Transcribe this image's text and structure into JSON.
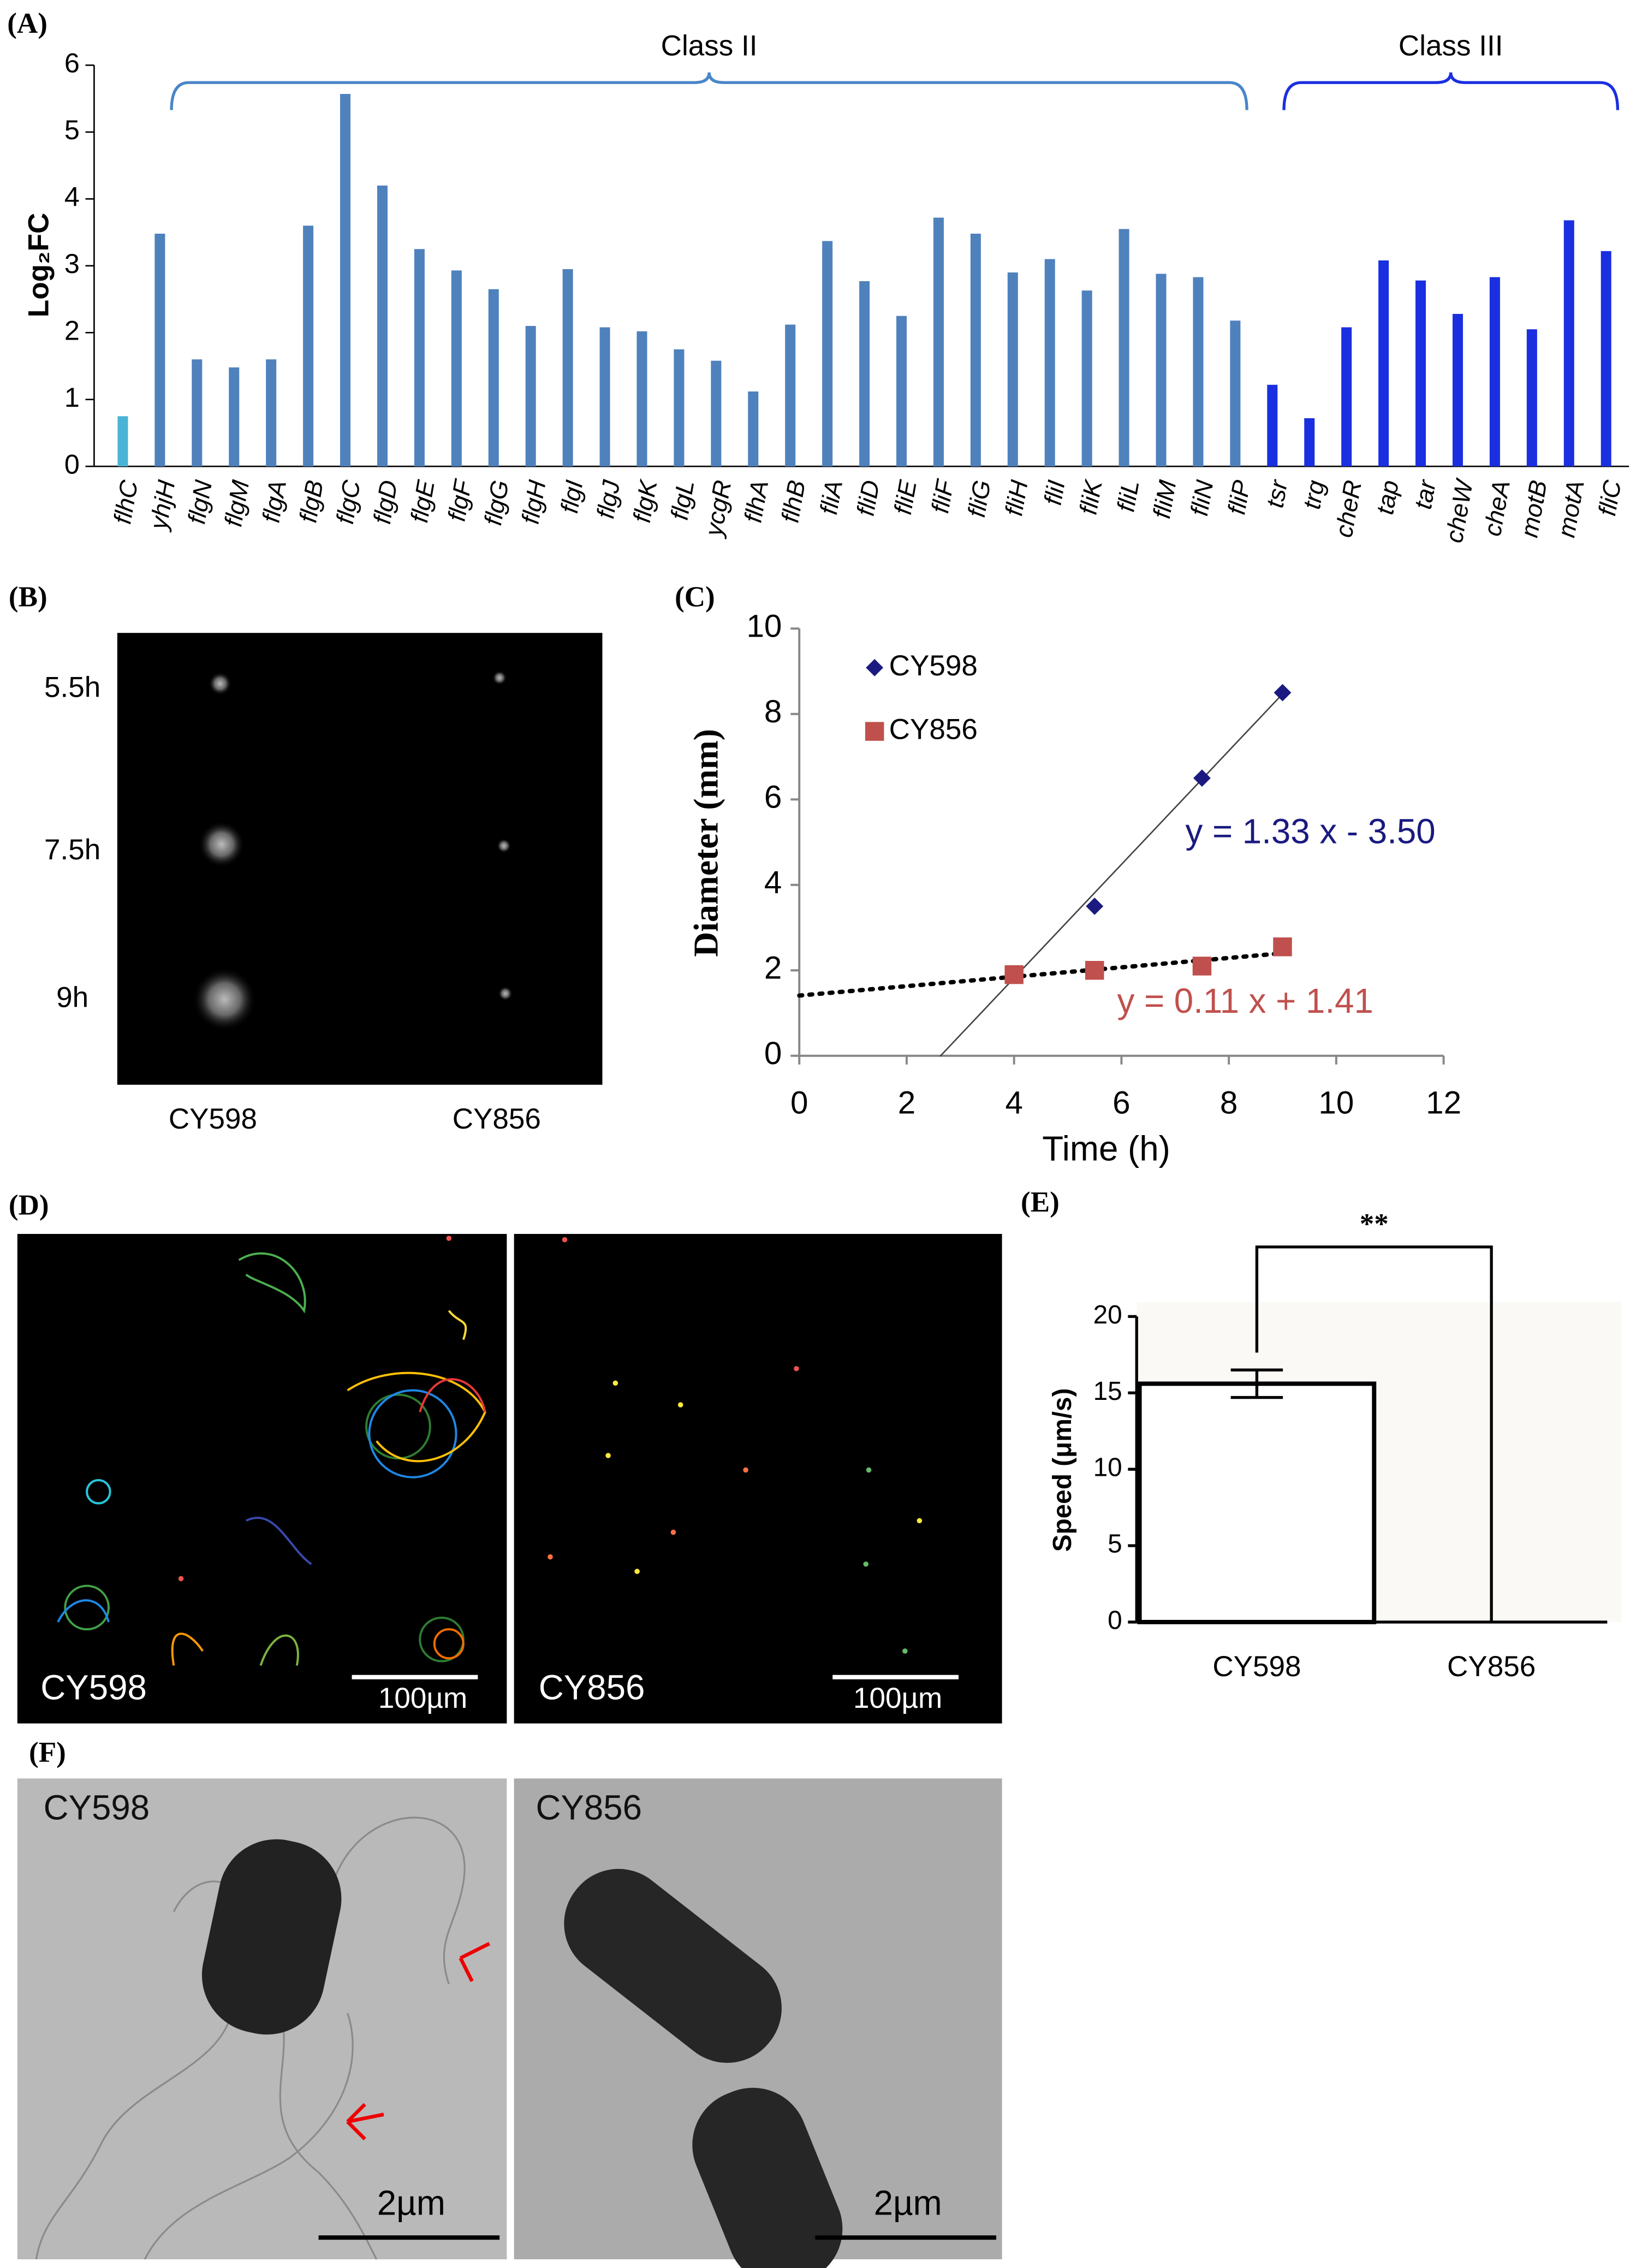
{
  "chart_data": [
    {
      "type": "bar",
      "label": "(A)",
      "ylabel": "Log₂FC",
      "categories": [
        "flhC",
        "yhjH",
        "flgN",
        "flgM",
        "flgA",
        "flgB",
        "flgC",
        "flgD",
        "flgE",
        "flgF",
        "flgG",
        "flgH",
        "flgI",
        "flgJ",
        "flgK",
        "flgL",
        "ycgR",
        "flhA",
        "flhB",
        "fliA",
        "fliD",
        "fliE",
        "fliF",
        "fliG",
        "fliH",
        "fliI",
        "fliK",
        "fliL",
        "fliM",
        "fliN",
        "fliP",
        "tsr",
        "trg",
        "cheR",
        "tap",
        "tar",
        "cheW",
        "cheA",
        "motB",
        "motA",
        "fliC"
      ],
      "values": [
        0.75,
        3.48,
        1.6,
        1.48,
        1.6,
        3.6,
        5.57,
        4.2,
        3.25,
        2.93,
        2.65,
        2.1,
        2.95,
        2.08,
        2.02,
        1.75,
        1.58,
        1.12,
        2.12,
        3.37,
        2.77,
        2.25,
        3.72,
        3.48,
        2.9,
        3.1,
        2.63,
        3.55,
        2.88,
        2.83,
        2.18,
        1.22,
        0.72,
        2.08,
        3.08,
        2.78,
        2.28,
        2.83,
        2.05,
        3.68,
        3.22
      ],
      "colors": [
        "#4bb3d6",
        "#4f81bd",
        "#4f81bd",
        "#4f81bd",
        "#4f81bd",
        "#4f81bd",
        "#4f81bd",
        "#4f81bd",
        "#4f81bd",
        "#4f81bd",
        "#4f81bd",
        "#4f81bd",
        "#4f81bd",
        "#4f81bd",
        "#4f81bd",
        "#4f81bd",
        "#4f81bd",
        "#4f81bd",
        "#4f81bd",
        "#4f81bd",
        "#4f81bd",
        "#4f81bd",
        "#4f81bd",
        "#4f81bd",
        "#4f81bd",
        "#4f81bd",
        "#4f81bd",
        "#4f81bd",
        "#4f81bd",
        "#4f81bd",
        "#4f81bd",
        "#1a2fe0",
        "#1a2fe0",
        "#1a2fe0",
        "#1a2fe0",
        "#1a2fe0",
        "#1a2fe0",
        "#1a2fe0",
        "#1a2fe0",
        "#1a2fe0",
        "#1a2fe0"
      ],
      "ylim": [
        0,
        6
      ],
      "yticks": [
        0,
        1,
        2,
        3,
        4,
        5,
        6
      ],
      "brackets": [
        {
          "label": "Class II",
          "from": "yhjH",
          "to": "fliP",
          "color": "#4a86c8"
        },
        {
          "label": "Class III",
          "from": "tsr",
          "to": "fliC",
          "color": "#1a2fe0"
        }
      ]
    },
    {
      "type": "scatter",
      "label": "(C)",
      "xlabel": "Time (h)",
      "ylabel": "Diameter (mm)",
      "series": [
        {
          "name": "CY598",
          "color": "#1a1a80",
          "marker": "diamond",
          "x": [
            5.5,
            7.5,
            9
          ],
          "values": [
            3.5,
            6.5,
            8.5
          ],
          "trendline": {
            "label": "y = 1.33 x - 3.50",
            "slope": 1.33,
            "intercept": -3.5,
            "color": "#444444",
            "label_color": "#1a1a80",
            "style": "solid"
          }
        },
        {
          "name": "CY856",
          "color": "#c0504d",
          "marker": "square",
          "x": [
            4,
            5.5,
            7.5,
            9
          ],
          "values": [
            1.9,
            2.0,
            2.1,
            2.55
          ],
          "trendline": {
            "label": "y = 0.11 x + 1.41",
            "slope": 0.11,
            "intercept": 1.41,
            "color": "#000000",
            "label_color": "#c0504d",
            "style": "dotted"
          }
        }
      ],
      "xlim": [
        0,
        12
      ],
      "xticks": [
        0,
        2,
        4,
        6,
        8,
        10,
        12
      ],
      "ylim": [
        0,
        10
      ],
      "yticks": [
        0,
        2,
        4,
        6,
        8,
        10
      ],
      "legend": "top-left"
    },
    {
      "type": "bar",
      "label": "(E)",
      "ylabel": "Speed (μm/s)",
      "categories": [
        "CY598",
        "CY856"
      ],
      "values": [
        15.6,
        0
      ],
      "errors": [
        0.9,
        0
      ],
      "color": "#ffffff",
      "bar_edge": "#000000",
      "ylim": [
        0,
        20
      ],
      "yticks": [
        0,
        5,
        10,
        15,
        20
      ],
      "significance": "**"
    }
  ],
  "images": {
    "B": {
      "label": "(B)",
      "rows": [
        "5.5h",
        "7.5h",
        "9h"
      ],
      "columns": [
        "CY598",
        "CY856"
      ]
    },
    "D": {
      "label": "(D)",
      "panels": [
        {
          "strain": "CY598",
          "scale": "100µm"
        },
        {
          "strain": "CY856",
          "scale": "100µm"
        }
      ]
    },
    "F": {
      "label": "(F)",
      "panels": [
        {
          "strain": "CY598",
          "scale": "2µm"
        },
        {
          "strain": "CY856",
          "scale": "2µm"
        }
      ]
    }
  }
}
